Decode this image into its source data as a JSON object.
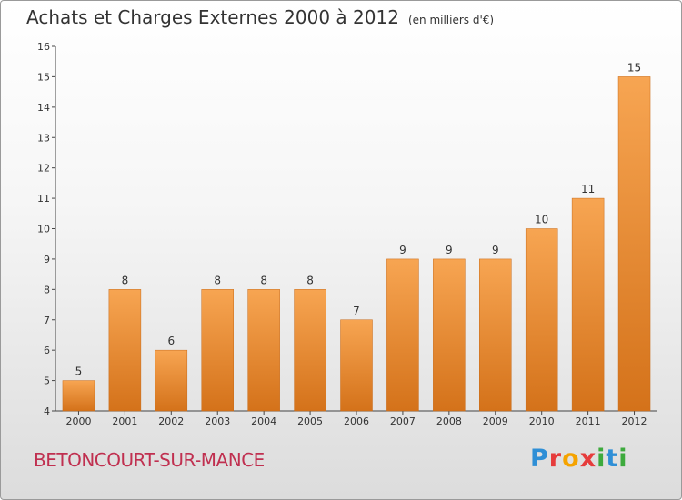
{
  "header": {
    "title": "Achats et Charges Externes 2000 à 2012",
    "subtitle": "(en milliers d'€)"
  },
  "footer": {
    "city": "BETONCOURT-SUR-MANCE",
    "brand": "Proxiti"
  },
  "colors": {
    "bar_light": "#f7a552",
    "bar_dark": "#d4721a",
    "city_text": "#c03050"
  },
  "chart_data": {
    "type": "bar",
    "title": "Achats et Charges Externes 2000 à 2012",
    "subtitle": "(en milliers d'€)",
    "categories": [
      "2000",
      "2001",
      "2002",
      "2003",
      "2004",
      "2005",
      "2006",
      "2007",
      "2008",
      "2009",
      "2010",
      "2011",
      "2012"
    ],
    "values": [
      5,
      8,
      6,
      8,
      8,
      8,
      7,
      9,
      9,
      9,
      10,
      11,
      15
    ],
    "ylim": [
      4,
      16
    ],
    "yticks": [
      4,
      5,
      6,
      7,
      8,
      9,
      10,
      11,
      12,
      13,
      14,
      15,
      16
    ],
    "grid": false,
    "data_labels": true
  }
}
